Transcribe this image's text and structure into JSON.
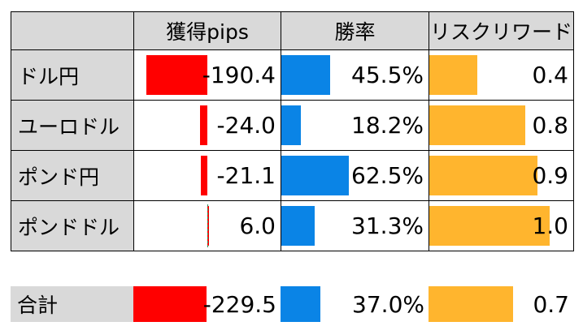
{
  "headers": [
    "獲得pips",
    "勝率",
    "リスクリワード"
  ],
  "rows": [
    {
      "label": "ドル円",
      "pips": "-190.4",
      "win": "45.5%",
      "rr": "0.4",
      "pips_v": -190.4,
      "win_v": 0.455,
      "rr_v": 0.4
    },
    {
      "label": "ユーロドル",
      "pips": "-24.0",
      "win": "18.2%",
      "rr": "0.8",
      "pips_v": -24.0,
      "win_v": 0.182,
      "rr_v": 0.8
    },
    {
      "label": "ポンド円",
      "pips": "-21.1",
      "win": "62.5%",
      "rr": "0.9",
      "pips_v": -21.1,
      "win_v": 0.625,
      "rr_v": 0.9
    },
    {
      "label": "ポンドドル",
      "pips": "6.0",
      "win": "31.3%",
      "rr": "1.0",
      "pips_v": 6.0,
      "win_v": 0.313,
      "rr_v": 1.0
    }
  ],
  "total": {
    "label": "合計",
    "pips": "-229.5",
    "win": "37.0%",
    "rr": "0.7",
    "pips_v": -229.5,
    "win_v": 0.37,
    "rr_v": 0.7
  },
  "colors": {
    "negative": "#ff0000",
    "win": "#0a84e6",
    "rr": "#ffb52e",
    "header_bg": "#d9d9d9"
  }
}
